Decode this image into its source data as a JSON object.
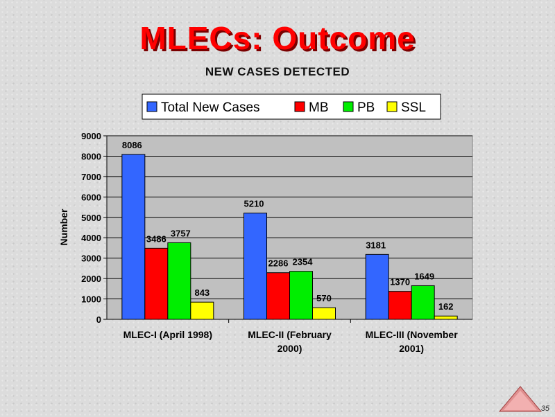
{
  "slide": {
    "title": "MLECs: Outcome",
    "page_number": "35"
  },
  "chart_data": {
    "type": "bar",
    "title": "",
    "subtitle": "NEW CASES DETECTED",
    "xlabel": "",
    "ylabel": "Number",
    "ylim": [
      0,
      9000
    ],
    "yticks": [
      "0",
      "1000",
      "2000",
      "3000",
      "4000",
      "5000",
      "6000",
      "7000",
      "8000",
      "9000"
    ],
    "categories": [
      "MLEC-I (April 1998)",
      "MLEC-II (February 2000)",
      "MLEC-III (November 2001)"
    ],
    "category_lines": [
      [
        "MLEC-I (April 1998)"
      ],
      [
        "MLEC-II (February",
        "2000)"
      ],
      [
        "MLEC-III (November",
        "2001)"
      ]
    ],
    "series": [
      {
        "name": "Total New Cases",
        "color": "#3366ff",
        "values": [
          8086,
          5210,
          3181
        ],
        "labels": [
          "8086",
          "5210",
          "3181"
        ]
      },
      {
        "name": "MB",
        "color": "#ff0000",
        "values": [
          3486,
          2286,
          1370
        ],
        "labels": [
          "3486",
          "2286",
          "1370"
        ]
      },
      {
        "name": "PB",
        "color": "#00ee00",
        "values": [
          3757,
          2354,
          1649
        ],
        "labels": [
          "3757",
          "2354",
          "1649"
        ]
      },
      {
        "name": "SSL",
        "color": "#ffff00",
        "values": [
          843,
          570,
          162
        ],
        "labels": [
          "843",
          "570",
          "162"
        ]
      }
    ],
    "legend_position": "top",
    "grid": true,
    "plot_background": "#c0c0c0"
  }
}
